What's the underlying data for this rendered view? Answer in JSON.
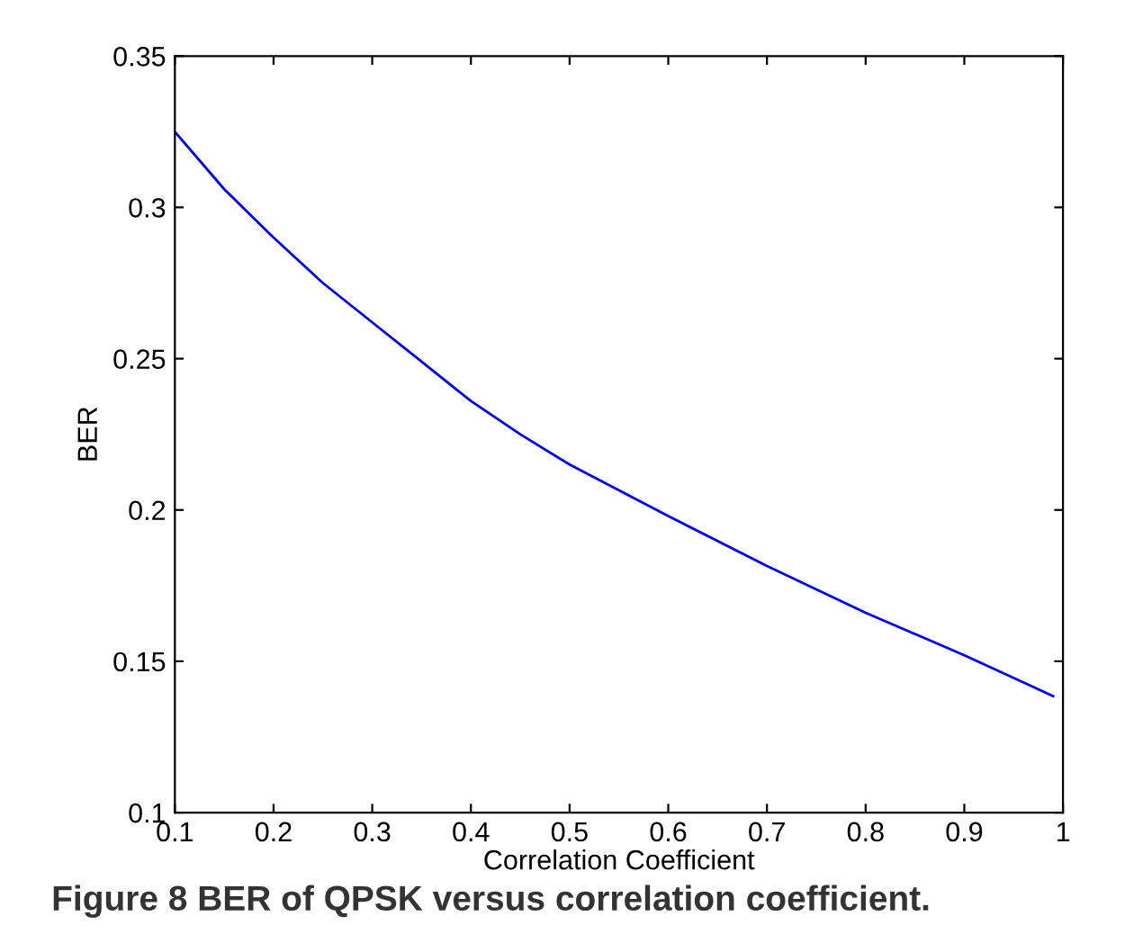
{
  "chart_data": {
    "type": "line",
    "xlabel": "Correlation Coefficient",
    "ylabel": "BER",
    "x": [
      0.1,
      0.15,
      0.2,
      0.25,
      0.3,
      0.35,
      0.4,
      0.45,
      0.5,
      0.6,
      0.7,
      0.8,
      0.9,
      0.99
    ],
    "series": [
      {
        "color": "#0000ff",
        "values": [
          0.325,
          0.306,
          0.29,
          0.275,
          0.262,
          0.249,
          0.236,
          0.225,
          0.215,
          0.198,
          0.1815,
          0.166,
          0.152,
          0.1385
        ]
      }
    ],
    "xlim": [
      0.1,
      1
    ],
    "xticks": [
      0.1,
      0.2,
      0.3,
      0.4,
      0.5,
      0.6,
      0.7,
      0.8,
      0.9,
      1
    ],
    "ylim": [
      0.1,
      0.35
    ],
    "yticks": [
      0.1,
      0.15,
      0.2,
      0.25,
      0.3,
      0.35
    ],
    "grid": false,
    "legend": false,
    "marker": "none",
    "line_style": "solid",
    "annotations": [
      "Figure 8 BER of QPSK versus correlation coefficient."
    ]
  }
}
